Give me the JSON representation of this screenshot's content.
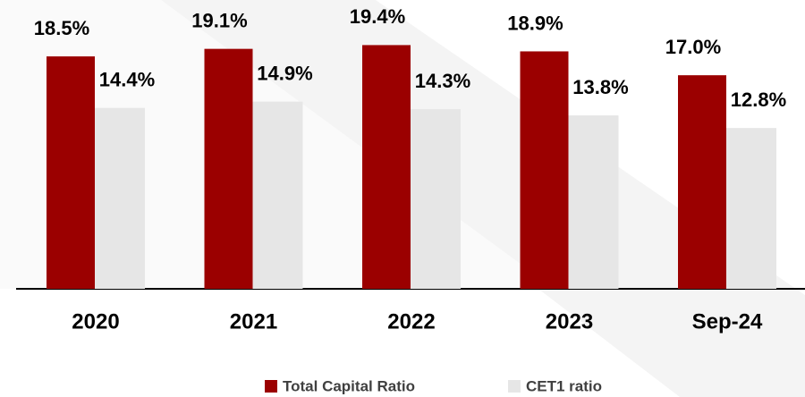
{
  "chart_data": {
    "type": "bar",
    "categories": [
      "2020",
      "2021",
      "2022",
      "2023",
      "Sep-24"
    ],
    "series": [
      {
        "name": "Total Capital Ratio",
        "color": "#9b0000",
        "values": [
          18.5,
          19.1,
          19.4,
          18.9,
          17.0
        ],
        "value_labels": [
          "18.5%",
          "19.1%",
          "19.4%",
          "18.9%",
          "17.0%"
        ]
      },
      {
        "name": "CET1 ratio",
        "color": "#e6e6e6",
        "values": [
          14.4,
          14.9,
          14.3,
          13.8,
          12.8
        ],
        "value_labels": [
          "14.4%",
          "14.9%",
          "14.3%",
          "13.8%",
          "12.8%"
        ]
      }
    ]
  }
}
